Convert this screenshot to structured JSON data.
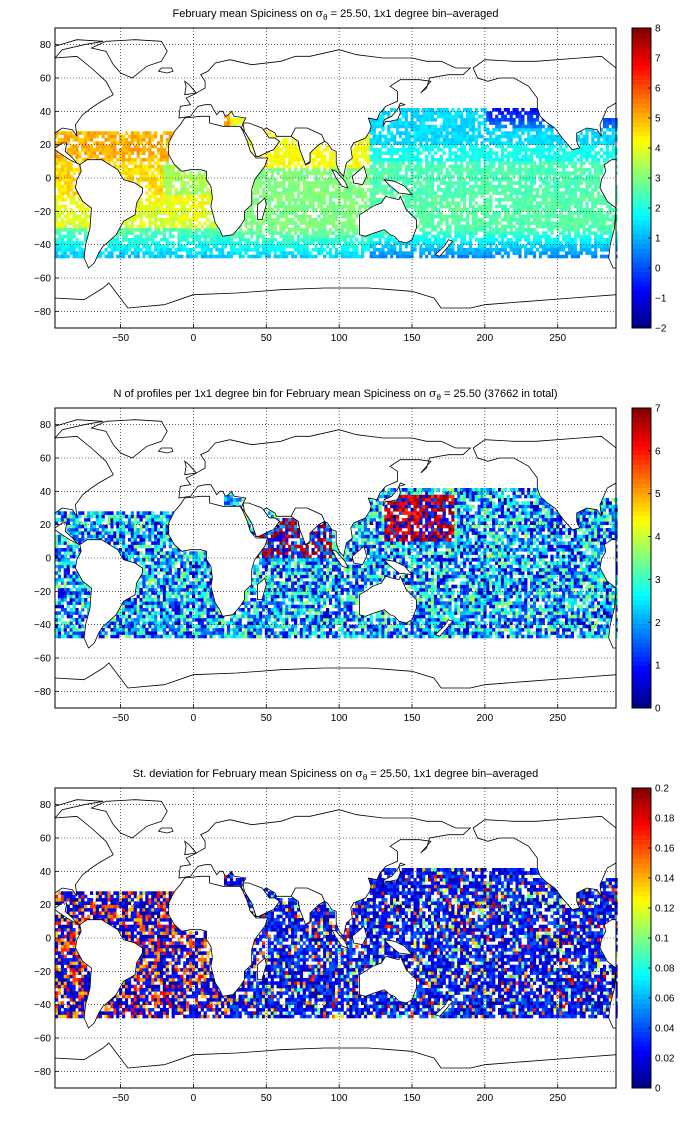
{
  "chart_data": [
    {
      "type": "heatmap",
      "title_pre": "February mean Spiciness on ",
      "title_symbol": "σ",
      "title_sub": "θ",
      "title_post": " = 25.50, 1x1 degree bin–averaged",
      "xlim": [
        -95,
        290
      ],
      "ylim": [
        -90,
        90
      ],
      "xticks": [
        -50,
        0,
        50,
        100,
        150,
        200,
        250
      ],
      "yticks": [
        80,
        60,
        40,
        20,
        0,
        -20,
        -40,
        -60,
        -80
      ],
      "grid": true,
      "colorbar": {
        "min": -2,
        "max": 8,
        "ticks": [
          8,
          7,
          6,
          5,
          4,
          3,
          2,
          1,
          0,
          -1,
          -2
        ]
      },
      "colormap": "jet",
      "field": "spiciness"
    },
    {
      "type": "heatmap",
      "title_pre": "N of profiles per 1x1 degree bin for February mean Spiciness on ",
      "title_symbol": "σ",
      "title_sub": "θ",
      "title_post": " = 25.50 (37662 in total)",
      "xlim": [
        -95,
        290
      ],
      "ylim": [
        -90,
        90
      ],
      "xticks": [
        -50,
        0,
        50,
        100,
        150,
        200,
        250
      ],
      "yticks": [
        80,
        60,
        40,
        20,
        0,
        -20,
        -40,
        -60,
        -80
      ],
      "grid": true,
      "colorbar": {
        "min": 0,
        "max": 7,
        "ticks": [
          7,
          6,
          5,
          4,
          3,
          2,
          1,
          0
        ]
      },
      "colormap": "jet",
      "field": "count"
    },
    {
      "type": "heatmap",
      "title_pre": "St. deviation for February mean Spiciness on ",
      "title_symbol": "σ",
      "title_sub": "θ",
      "title_post": " = 25.50, 1x1 degree bin–averaged",
      "xlim": [
        -95,
        290
      ],
      "ylim": [
        -90,
        90
      ],
      "xticks": [
        -50,
        0,
        50,
        100,
        150,
        200,
        250
      ],
      "yticks": [
        80,
        60,
        40,
        20,
        0,
        -20,
        -40,
        -60,
        -80
      ],
      "grid": true,
      "colorbar": {
        "min": 0,
        "max": 0.2,
        "ticks": [
          0.2,
          0.18,
          0.16,
          0.14,
          0.12,
          0.1,
          0.08,
          0.06,
          0.04,
          0.02,
          0
        ]
      },
      "colormap": "jet",
      "field": "stdev"
    }
  ]
}
